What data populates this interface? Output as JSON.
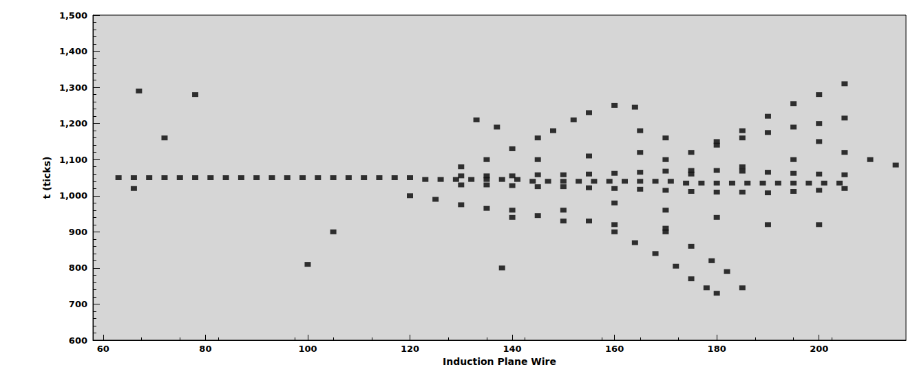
{
  "chart_data": {
    "type": "scatter",
    "x_label": "Induction Plane Wire",
    "y_label": "t (ticks)",
    "marker": "square",
    "color": "#111111",
    "xlim": [
      58,
      217
    ],
    "xticks": [
      60,
      80,
      100,
      120,
      140,
      160,
      180,
      200
    ],
    "ylim": [
      600,
      1500
    ],
    "yticks": [
      600,
      700,
      800,
      900,
      1000,
      1100,
      1200,
      1300,
      1400,
      1500
    ],
    "grid": false,
    "x": [
      63,
      66,
      69,
      72,
      75,
      78,
      81,
      84,
      87,
      90,
      93,
      96,
      99,
      102,
      105,
      108,
      111,
      114,
      117,
      120,
      123,
      126,
      129,
      132,
      135,
      138,
      141,
      144,
      147,
      150,
      153,
      156,
      159,
      162,
      165,
      168,
      171,
      174,
      177,
      180,
      183,
      186,
      189,
      192,
      195,
      198,
      201,
      204,
      130,
      135,
      140,
      145,
      150,
      155,
      160,
      165,
      170,
      175,
      180,
      185,
      190,
      195,
      200,
      205,
      130,
      135,
      140,
      145,
      150,
      155,
      160,
      165,
      170,
      175,
      180,
      185,
      190,
      195,
      200,
      205,
      130,
      135,
      140,
      145,
      148,
      152,
      155,
      160,
      164,
      180,
      185,
      190,
      195,
      200,
      205,
      170,
      175,
      180,
      185,
      190,
      195,
      200,
      205,
      133,
      137,
      165,
      170,
      150,
      155,
      160,
      164,
      168,
      172,
      175,
      178,
      180,
      170,
      175,
      179,
      182,
      185,
      140,
      150,
      160,
      170,
      120,
      125,
      130,
      135,
      140,
      145,
      105,
      138,
      67,
      66,
      78,
      72,
      100,
      200,
      210,
      215,
      175,
      185,
      195,
      205,
      145,
      155,
      165,
      160,
      170,
      180,
      190,
      200
    ],
    "values": [
      1050,
      1050,
      1050,
      1050,
      1050,
      1050,
      1050,
      1050,
      1050,
      1050,
      1050,
      1050,
      1050,
      1050,
      1050,
      1050,
      1050,
      1050,
      1050,
      1050,
      1045,
      1045,
      1045,
      1045,
      1045,
      1045,
      1045,
      1040,
      1040,
      1040,
      1040,
      1040,
      1040,
      1040,
      1040,
      1040,
      1040,
      1035,
      1035,
      1035,
      1035,
      1035,
      1035,
      1035,
      1035,
      1035,
      1035,
      1035,
      1055,
      1055,
      1055,
      1058,
      1058,
      1060,
      1062,
      1065,
      1068,
      1070,
      1070,
      1068,
      1065,
      1062,
      1060,
      1058,
      1030,
      1030,
      1028,
      1025,
      1025,
      1022,
      1020,
      1018,
      1015,
      1012,
      1010,
      1010,
      1008,
      1012,
      1015,
      1020,
      1080,
      1100,
      1130,
      1160,
      1180,
      1210,
      1230,
      1250,
      1245,
      1150,
      1180,
      1220,
      1255,
      1280,
      1310,
      1100,
      1120,
      1140,
      1160,
      1175,
      1190,
      1200,
      1215,
      1210,
      1190,
      1180,
      1160,
      960,
      930,
      900,
      870,
      840,
      805,
      770,
      745,
      730,
      900,
      860,
      820,
      790,
      745,
      940,
      930,
      920,
      910,
      1000,
      990,
      975,
      965,
      960,
      945,
      900,
      800,
      1290,
      1020,
      1280,
      1160,
      810,
      1150,
      1100,
      1085,
      1060,
      1080,
      1100,
      1120,
      1100,
      1110,
      1120,
      980,
      960,
      940,
      920,
      920
    ]
  }
}
